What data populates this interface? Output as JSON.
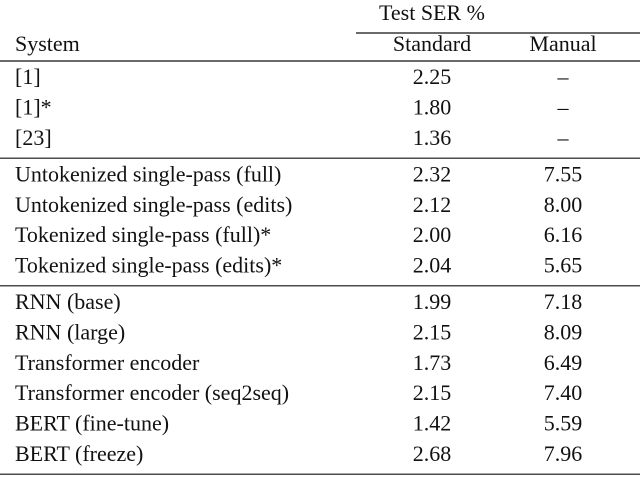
{
  "table": {
    "header": {
      "group": "Test SER %",
      "columns": [
        "System",
        "Standard",
        "Manual"
      ]
    },
    "groups": [
      [
        [
          "[1]",
          "2.25",
          "–"
        ],
        [
          "[1]*",
          "1.80",
          "–"
        ],
        [
          "[23]",
          "1.36",
          "–"
        ]
      ],
      [
        [
          "Untokenized single-pass (full)",
          "2.32",
          "7.55"
        ],
        [
          "Untokenized single-pass (edits)",
          "2.12",
          "8.00"
        ],
        [
          "Tokenized single-pass (full)*",
          "2.00",
          "6.16"
        ],
        [
          "Tokenized single-pass (edits)*",
          "2.04",
          "5.65"
        ]
      ],
      [
        [
          "RNN (base)",
          "1.99",
          "7.18"
        ],
        [
          "RNN (large)",
          "2.15",
          "8.09"
        ],
        [
          "Transformer encoder",
          "1.73",
          "6.49"
        ],
        [
          "Transformer encoder (seq2seq)",
          "2.15",
          "7.40"
        ],
        [
          "BERT (fine-tune)",
          "1.42",
          "5.59"
        ],
        [
          "BERT (freeze)",
          "2.68",
          "7.96"
        ]
      ]
    ]
  }
}
